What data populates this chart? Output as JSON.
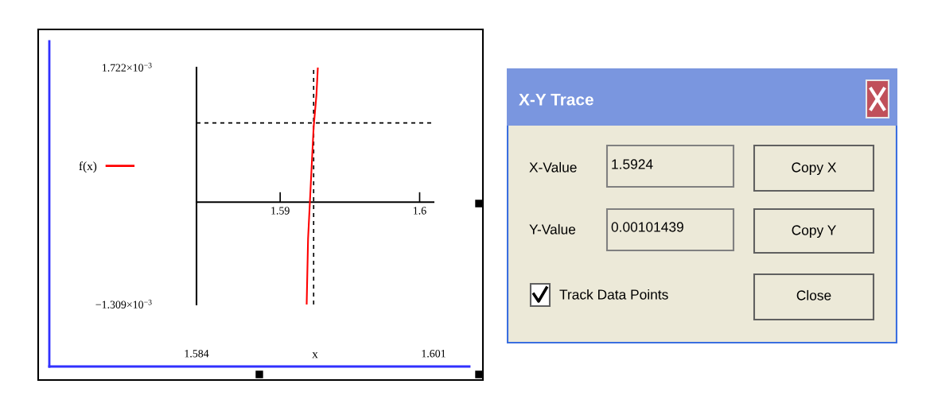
{
  "chart_data": [
    {
      "type": "line",
      "x2label": "x",
      "xlim": [
        1.584,
        1.601
      ],
      "ylim": [
        -0.001309,
        0.001722
      ],
      "xticks": [
        1.59,
        1.6
      ],
      "x2lim": [
        1.584,
        1.601
      ],
      "x2ticks": [
        1.584,
        1.601
      ],
      "yticks": [
        {
          "value": -0.001309,
          "label": "−1.309×10$^{−3}$"
        },
        {
          "value": 0.001722,
          "label": "1.722×10$^{−3}$"
        }
      ],
      "x": [
        1.5919,
        1.592,
        1.5922,
        1.5924,
        1.5926,
        1.5927
      ],
      "series": [
        {
          "name": "f(x)",
          "color": "#ff0000",
          "values": [
            -0.001309,
            -0.00047,
            0.00025,
            0.00096,
            0.00137,
            0.00172
          ]
        }
      ],
      "ref_lines": [
        {
          "axis": "x",
          "value": 1.5924,
          "color": "#000000",
          "line_style": "dashed"
        },
        {
          "axis": "y",
          "value": 0.00101439,
          "color": "#000000",
          "line_style": "dashed"
        }
      ],
      "legend": "left",
      "grid": false,
      "marker": "none",
      "line_style": "solid"
    },
    {
      "type": "other",
      "title": "X-Y Trace",
      "annotations": [
        "X-Value",
        "1.5924",
        "Copy X",
        "Y-Value",
        "0.00101439",
        "Copy Y",
        "Track Data Points",
        "Close"
      ]
    }
  ]
}
